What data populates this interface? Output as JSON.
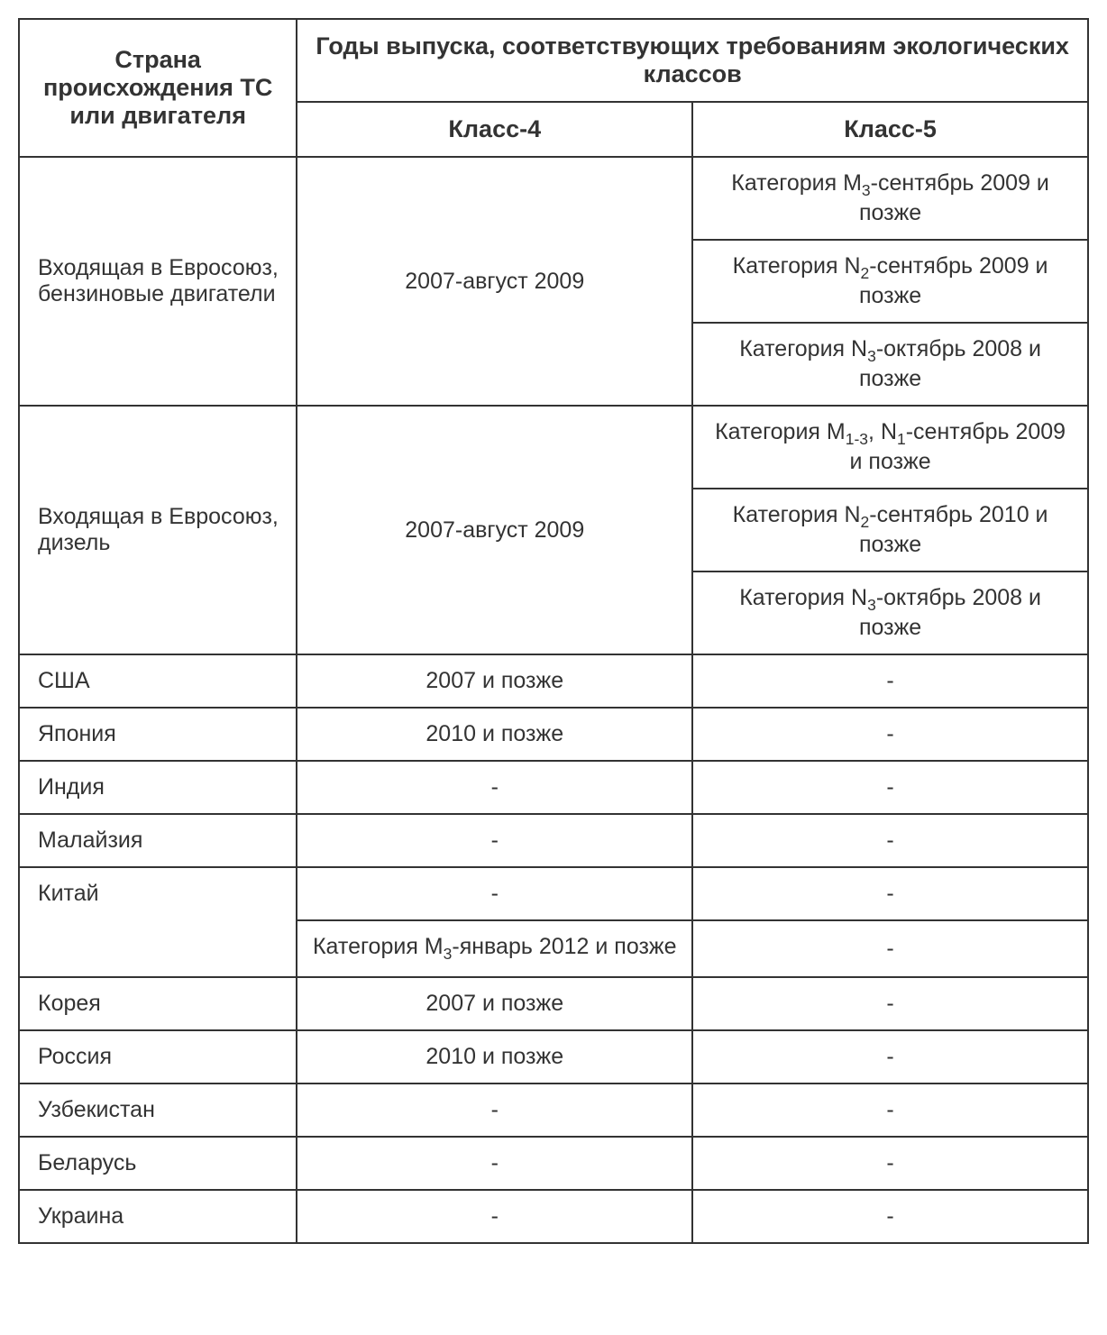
{
  "table": {
    "headers": {
      "country": "Страна происхождения ТС или двигателя",
      "years_title": "Годы выпуска, соответствующих требованиям экологических классов",
      "class4": "Класс-4",
      "class5": "Класс-5"
    },
    "rows": {
      "eu_petrol": {
        "label": "Входящая в Евросоюз, бензиновые двигатели",
        "class4": "2007-август 2009",
        "class5_items": [
          "Категория M₃-сентябрь 2009 и позже",
          "Категория N₂-сентябрь 2009 и позже",
          "Категория N₃-октябрь 2008 и позже"
        ]
      },
      "eu_diesel": {
        "label": "Входящая в Евросоюз, дизель",
        "class4": "2007-август 2009",
        "class5_items": [
          "Категория M₁₋₃, N₁-сентябрь 2009 и позже",
          "Категория N₂-сентябрь 2010 и позже",
          "Категория N₃-октябрь 2008 и позже"
        ]
      },
      "usa": {
        "label": "США",
        "class4": "2007 и позже",
        "class5": "-"
      },
      "japan": {
        "label": "Япония",
        "class4": "2010 и позже",
        "class5": "-"
      },
      "india": {
        "label": "Индия",
        "class4": "-",
        "class5": "-"
      },
      "malaysia": {
        "label": "Малайзия",
        "class4": "-",
        "class5": "-"
      },
      "china": {
        "label": "Китай",
        "class4_line1": "-",
        "class5_line1": "-",
        "class4_line2": "Категория M₃-январь 2012 и позже",
        "class5_line2": "-"
      },
      "korea": {
        "label": "Корея",
        "class4": "2007 и позже",
        "class5": "-"
      },
      "russia": {
        "label": "Россия",
        "class4": "2010 и позже",
        "class5": "-"
      },
      "uzbekistan": {
        "label": "Узбекистан",
        "class4": "-",
        "class5": "-"
      },
      "belarus": {
        "label": "Беларусь",
        "class4": "-",
        "class5": "-"
      },
      "ukraine": {
        "label": "Украина",
        "class4": "-",
        "class5": "-"
      }
    },
    "style": {
      "border_color": "#333333",
      "text_color": "#333333",
      "background_color": "#ffffff",
      "header_fontsize": 27,
      "cell_fontsize": 25,
      "border_width": 2
    }
  }
}
